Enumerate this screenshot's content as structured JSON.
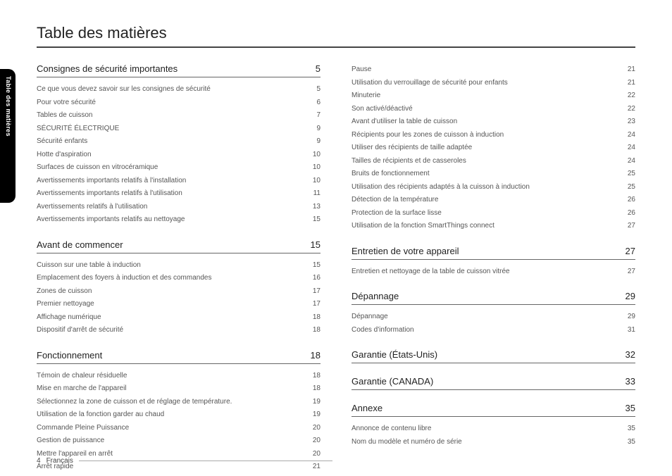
{
  "sideTab": "Table des matières",
  "title": "Table des matières",
  "footer": {
    "pageNum": "4",
    "lang": "Français"
  },
  "columns": [
    [
      {
        "head": {
          "title": "Consignes de sécurité importantes",
          "page": "5"
        },
        "entries": [
          {
            "label": "Ce que vous devez savoir sur les consignes de sécurité",
            "page": "5"
          },
          {
            "label": "Pour votre sécurité",
            "page": "6"
          },
          {
            "label": "Tables de cuisson",
            "page": "7"
          },
          {
            "label": "SÉCURITÉ ÉLECTRIQUE",
            "page": "9"
          },
          {
            "label": "Sécurité enfants",
            "page": "9"
          },
          {
            "label": "Hotte d'aspiration",
            "page": "10"
          },
          {
            "label": "Surfaces de cuisson en vitrocéramique",
            "page": "10"
          },
          {
            "label": "Avertissements importants relatifs à l'installation",
            "page": "10"
          },
          {
            "label": "Avertissements importants relatifs à l'utilisation",
            "page": "11"
          },
          {
            "label": "Avertissements relatifs à l'utilisation",
            "page": "13"
          },
          {
            "label": "Avertissements importants relatifs au nettoyage",
            "page": "15"
          }
        ]
      },
      {
        "head": {
          "title": "Avant de commencer",
          "page": "15"
        },
        "entries": [
          {
            "label": "Cuisson sur une table à induction",
            "page": "15"
          },
          {
            "label": "Emplacement des foyers à induction et des commandes",
            "page": "16"
          },
          {
            "label": "Zones de cuisson",
            "page": "17"
          },
          {
            "label": "Premier nettoyage",
            "page": "17"
          },
          {
            "label": "Affichage numérique",
            "page": "18"
          },
          {
            "label": "Dispositif d'arrêt de sécurité",
            "page": "18"
          }
        ]
      },
      {
        "head": {
          "title": "Fonctionnement",
          "page": "18"
        },
        "entries": [
          {
            "label": "Témoin de chaleur résiduelle",
            "page": "18"
          },
          {
            "label": "Mise en marche de l'appareil",
            "page": "18"
          },
          {
            "label": "Sélectionnez la zone de cuisson et de réglage de température.",
            "page": "19"
          },
          {
            "label": "Utilisation de la fonction garder au chaud",
            "page": "19"
          },
          {
            "label": "Commande Pleine Puissance",
            "page": "20"
          },
          {
            "label": "Gestion de puissance",
            "page": "20"
          },
          {
            "label": "Mettre l'appareil en arrêt",
            "page": "20"
          },
          {
            "label": "Arrêt rapide",
            "page": "21"
          }
        ]
      }
    ],
    [
      {
        "entries": [
          {
            "label": "Pause",
            "page": "21"
          },
          {
            "label": "Utilisation du verrouillage de sécurité pour enfants",
            "page": "21"
          },
          {
            "label": "Minuterie",
            "page": "22"
          },
          {
            "label": "Son activé/déactivé",
            "page": "22"
          },
          {
            "label": "Avant d'utiliser la table de cuisson",
            "page": "23"
          },
          {
            "label": "Récipients pour les zones de cuisson à induction",
            "page": "24"
          },
          {
            "label": "Utiliser des récipients de taille adaptée",
            "page": "24"
          },
          {
            "label": "Tailles de récipients et de casseroles",
            "page": "24"
          },
          {
            "label": "Bruits de fonctionnement",
            "page": "25"
          },
          {
            "label": "Utilisation des récipients adaptés à la cuisson à induction",
            "page": "25"
          },
          {
            "label": "Détection de la température",
            "page": "26"
          },
          {
            "label": "Protection de la surface lisse",
            "page": "26"
          },
          {
            "label": "Utilisation de la fonction SmartThings connect",
            "page": "27"
          }
        ]
      },
      {
        "head": {
          "title": "Entretien de votre appareil",
          "page": "27"
        },
        "entries": [
          {
            "label": "Entretien et nettoyage de la table de cuisson vitrée",
            "page": "27"
          }
        ]
      },
      {
        "head": {
          "title": "Dépannage",
          "page": "29"
        },
        "entries": [
          {
            "label": "Dépannage",
            "page": "29"
          },
          {
            "label": "Codes d'information",
            "page": "31"
          }
        ]
      },
      {
        "head": {
          "title": "Garantie (États-Unis)",
          "page": "32"
        },
        "entries": []
      },
      {
        "head": {
          "title": "Garantie (CANADA)",
          "page": "33"
        },
        "entries": []
      },
      {
        "head": {
          "title": "Annexe",
          "page": "35"
        },
        "entries": [
          {
            "label": "Annonce de contenu libre",
            "page": "35"
          },
          {
            "label": "Nom du modèle et numéro de série",
            "page": "35"
          }
        ]
      }
    ]
  ]
}
